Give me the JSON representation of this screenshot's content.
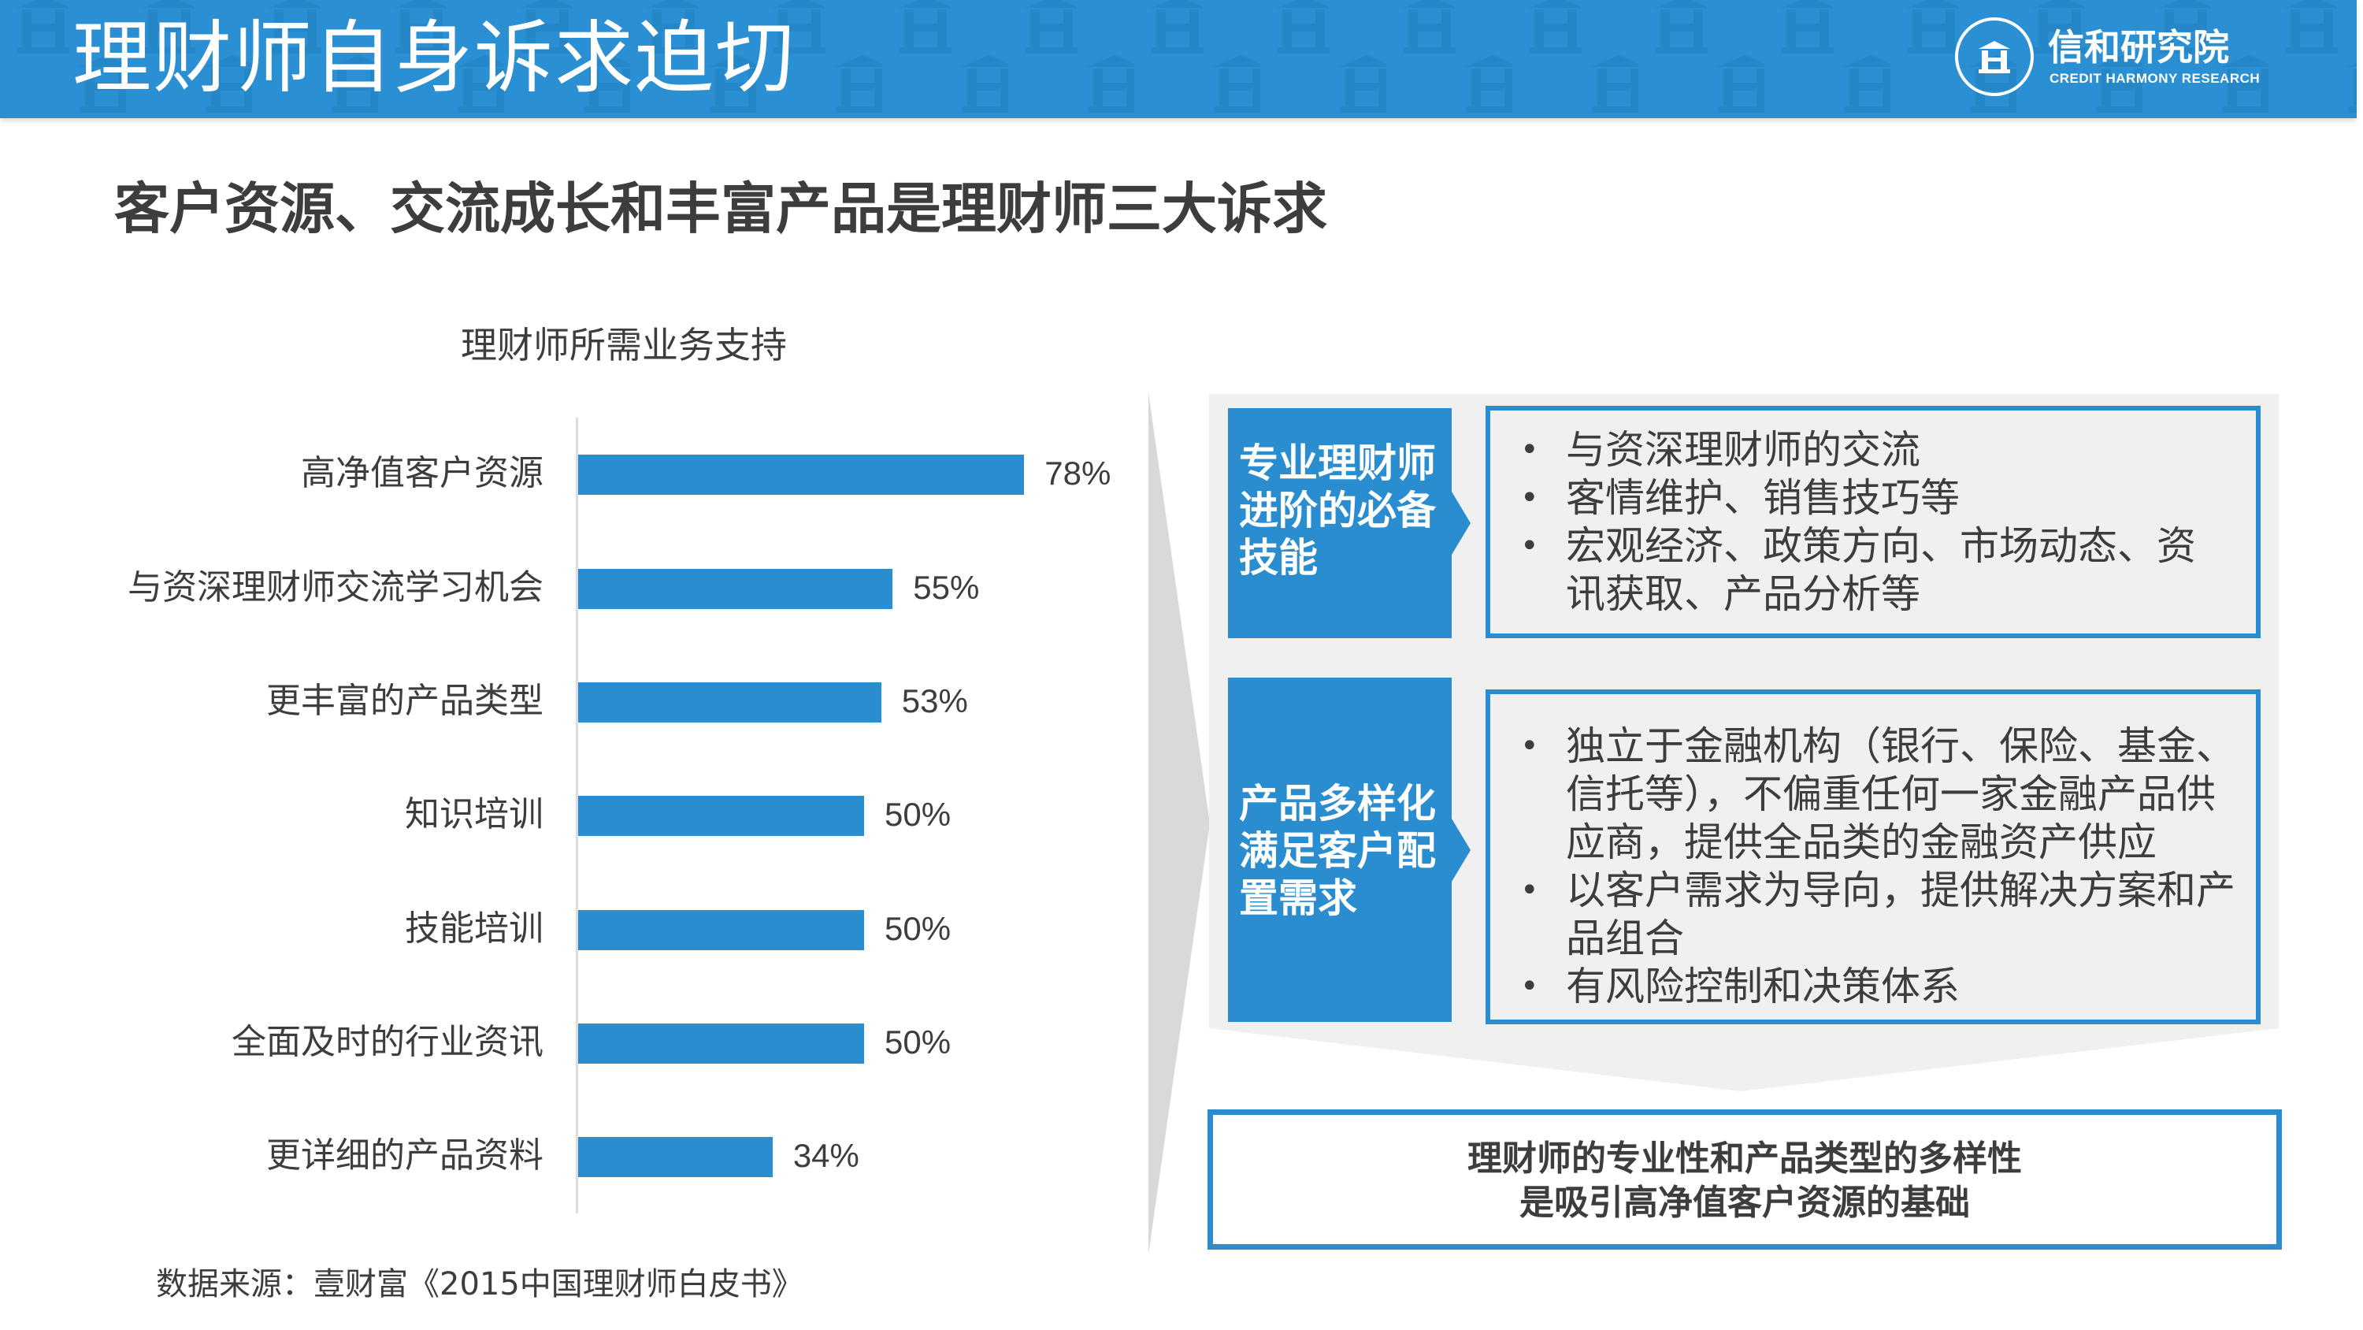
{
  "header": {
    "title": "理财师自身诉求迫切",
    "logo_cn": "信和研究院",
    "logo_en": "CREDIT HARMONY RESEARCH",
    "logo_icon": "building-seal-icon",
    "bg_color": "#2b8fd3"
  },
  "subtitle": "客户资源、交流成长和丰富产品是理财师三大诉求",
  "chart_data": {
    "type": "bar",
    "orientation": "horizontal",
    "title": "理财师所需业务支持",
    "categories": [
      "高净值客户资源",
      "与资深理财师交流学习机会",
      "更丰富的产品类型",
      "知识培训",
      "技能培训",
      "全面及时的行业资讯",
      "更详细的产品资料"
    ],
    "values": [
      78,
      55,
      53,
      50,
      50,
      50,
      34
    ],
    "value_labels": [
      "78%",
      "55%",
      "53%",
      "50%",
      "50%",
      "50%",
      "34%"
    ],
    "unit": "%",
    "xlabel": "",
    "ylabel": "",
    "xlim": [
      0,
      100
    ],
    "grid": false,
    "legend": "none",
    "bar_color": "#2a8dd0"
  },
  "source": "数据来源：壹财富《2015中国理财师白皮书》",
  "panel": {
    "sections": [
      {
        "category": "专业理财师进阶的必备技能",
        "category_lines": [
          "专业理财师",
          "进阶的必备",
          "技能"
        ],
        "items": [
          "与资深理财师的交流",
          "客情维护、销售技巧等",
          "宏观经济、政策方向、市场动态、资讯获取、产品分析等"
        ]
      },
      {
        "category": "产品多样化满足客户配置需求",
        "category_lines": [
          "产品多样化",
          "满足客户配",
          "置需求"
        ],
        "items": [
          "独立于金融机构（银行、保险、基金、信托等），不偏重任何一家金融产品供应商，提供全品类的金融资产供应",
          "以客户需求为导向，提供解决方案和产品组合",
          "有风险控制和决策体系"
        ]
      }
    ],
    "conclusion_lines": [
      "理财师的专业性和产品类型的多样性",
      "是吸引高净值客户资源的基础"
    ],
    "accent_color": "#2a8dd0",
    "panel_bg": "#f0f0f0"
  }
}
